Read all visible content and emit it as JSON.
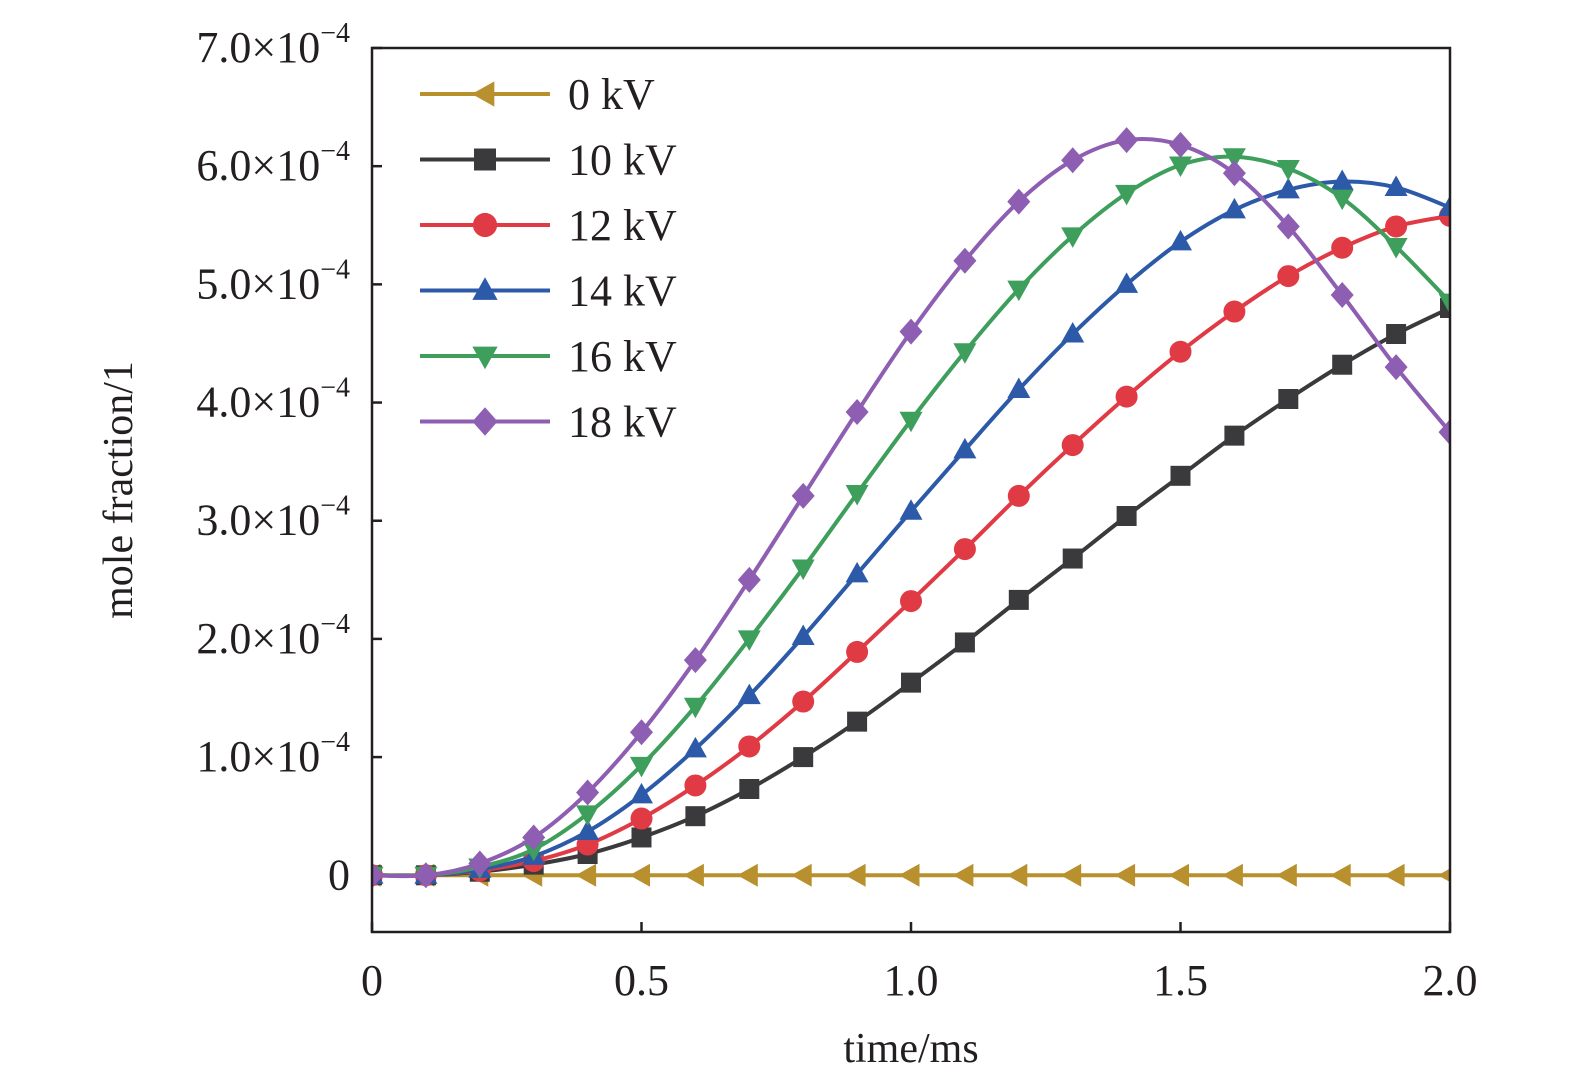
{
  "chart_data": {
    "type": "line",
    "title": "",
    "xlabel": "time/ms",
    "ylabel": "mole fraction/1",
    "xlim": [
      0,
      2.0
    ],
    "ylim": [
      -4.8e-05,
      0.0007
    ],
    "x_ticks": [
      {
        "value": 0,
        "label": "0"
      },
      {
        "value": 0.5,
        "label": "0.5"
      },
      {
        "value": 1.0,
        "label": "1.0"
      },
      {
        "value": 1.5,
        "label": "1.5"
      },
      {
        "value": 2.0,
        "label": "2.0"
      }
    ],
    "y_ticks": [
      {
        "value": 0,
        "mantissa": "0",
        "exponent": ""
      },
      {
        "value": 0.0001,
        "mantissa": "1.0×10",
        "exponent": "−4"
      },
      {
        "value": 0.0002,
        "mantissa": "2.0×10",
        "exponent": "−4"
      },
      {
        "value": 0.0003,
        "mantissa": "3.0×10",
        "exponent": "−4"
      },
      {
        "value": 0.0004,
        "mantissa": "4.0×10",
        "exponent": "−4"
      },
      {
        "value": 0.0005,
        "mantissa": "5.0×10",
        "exponent": "−4"
      },
      {
        "value": 0.0006,
        "mantissa": "6.0×10",
        "exponent": "−4"
      },
      {
        "value": 0.0007,
        "mantissa": "7.0×10",
        "exponent": "−4"
      }
    ],
    "grid": false,
    "legend_position": "top-left",
    "x": [
      0,
      0.1,
      0.2,
      0.3,
      0.4,
      0.5,
      0.6,
      0.7,
      0.8,
      0.9,
      1.0,
      1.1,
      1.2,
      1.3,
      1.4,
      1.5,
      1.6,
      1.7,
      1.8,
      1.9,
      2.0
    ],
    "series": [
      {
        "name": "0 kV",
        "color": "#b8912e",
        "marker": "triangle-left",
        "values": [
          0,
          0,
          0,
          0,
          0,
          0,
          0,
          0,
          0,
          0,
          0,
          0,
          0,
          0,
          0,
          0,
          0,
          0,
          0,
          0,
          0
        ]
      },
      {
        "name": "10 kV",
        "color": "#3a3a3c",
        "marker": "square",
        "values": [
          0,
          0,
          3e-06,
          9e-06,
          1.8e-05,
          3.2e-05,
          5e-05,
          7.3e-05,
          0.0001,
          0.00013,
          0.000163,
          0.000197,
          0.000233,
          0.000268,
          0.000304,
          0.000338,
          0.000372,
          0.000403,
          0.000432,
          0.000458,
          0.00048
        ]
      },
      {
        "name": "12 kV",
        "color": "#e03a45",
        "marker": "circle",
        "values": [
          0,
          0,
          4e-06,
          1.2e-05,
          2.6e-05,
          4.8e-05,
          7.6e-05,
          0.000109,
          0.000147,
          0.000189,
          0.000232,
          0.000276,
          0.000321,
          0.000364,
          0.000405,
          0.000443,
          0.000477,
          0.000507,
          0.000531,
          0.000549,
          0.000558
        ]
      },
      {
        "name": "14 kV",
        "color": "#2c5aa8",
        "marker": "triangle-up",
        "values": [
          0,
          0,
          5e-06,
          1.6e-05,
          3.7e-05,
          6.8e-05,
          0.000107,
          0.000152,
          0.000202,
          0.000255,
          0.000308,
          0.00036,
          0.000411,
          0.000458,
          0.0005,
          0.000536,
          0.000563,
          0.00058,
          0.000587,
          0.000582,
          0.000565
        ]
      },
      {
        "name": "16 kV",
        "color": "#3e9e5c",
        "marker": "triangle-down",
        "values": [
          0,
          0,
          7e-06,
          2.2e-05,
          5.2e-05,
          9.3e-05,
          0.000143,
          0.0002,
          0.00026,
          0.000323,
          0.000385,
          0.000443,
          0.000496,
          0.000541,
          0.000577,
          0.000601,
          0.000608,
          0.000598,
          0.000573,
          0.000532,
          0.000485
        ]
      },
      {
        "name": "18 kV",
        "color": "#8e5eb2",
        "marker": "diamond",
        "values": [
          0,
          0,
          1e-05,
          3.2e-05,
          7e-05,
          0.000121,
          0.000182,
          0.00025,
          0.000321,
          0.000392,
          0.00046,
          0.00052,
          0.00057,
          0.000605,
          0.000622,
          0.000618,
          0.000594,
          0.000549,
          0.000491,
          0.00043,
          0.000375
        ]
      }
    ]
  }
}
